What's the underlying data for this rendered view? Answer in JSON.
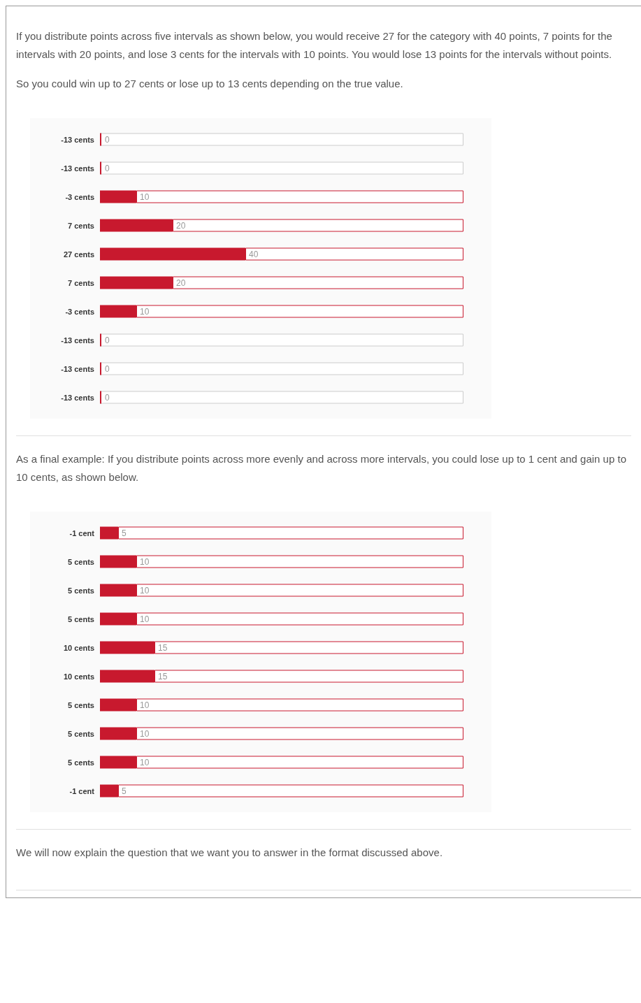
{
  "chart_data": [
    {
      "type": "bar",
      "orientation": "horizontal",
      "stacked": true,
      "annotations": [
        "If you distribute points across five intervals as shown below, you would receive 27 for the category with 40 points, 7 points for the intervals with 20 points, and lose 3 cents for the intervals with 10 points. You would lose 13 points for the intervals without points.",
        "So you could win up to 27 cents or lose up to 13 cents depending on the true value."
      ],
      "categories": [
        "-13 cents",
        "-13 cents",
        "-3 cents",
        "7 cents",
        "27 cents",
        "7 cents",
        "-3 cents",
        "-13 cents",
        "-13 cents",
        "-13 cents"
      ],
      "xlim": [
        0,
        100
      ],
      "series": [
        {
          "color": "#c8192e",
          "values": [
            0,
            0,
            10,
            20,
            40,
            20,
            10,
            0,
            0,
            0
          ],
          "value_labels": [
            "0",
            "0",
            "10",
            "20",
            "40",
            "20",
            "10",
            "0",
            "0",
            "0"
          ]
        },
        {
          "color": "#ffffff",
          "values": [
            100,
            100,
            90,
            80,
            60,
            80,
            90,
            100,
            100,
            100
          ]
        }
      ]
    },
    {
      "type": "bar",
      "orientation": "horizontal",
      "stacked": true,
      "annotations": [
        "As a final example: If you distribute points across more evenly and across more intervals, you could lose up to 1 cent and gain up to 10 cents, as shown below."
      ],
      "categories": [
        "-1 cent",
        "5 cents",
        "5 cents",
        "5 cents",
        "10 cents",
        "10 cents",
        "5 cents",
        "5 cents",
        "5 cents",
        "-1 cent"
      ],
      "xlim": [
        0,
        100
      ],
      "series": [
        {
          "color": "#c8192e",
          "values": [
            5,
            10,
            10,
            10,
            15,
            15,
            10,
            10,
            10,
            5
          ],
          "value_labels": [
            "5",
            "10",
            "10",
            "10",
            "15",
            "15",
            "10",
            "10",
            "10",
            "5"
          ]
        },
        {
          "color": "#ffffff",
          "values": [
            95,
            90,
            90,
            90,
            85,
            85,
            90,
            90,
            90,
            95
          ]
        }
      ]
    },
    {
      "type": "other",
      "annotations": [
        "We will now explain the question that we want you to answer in the format discussed above."
      ]
    }
  ]
}
